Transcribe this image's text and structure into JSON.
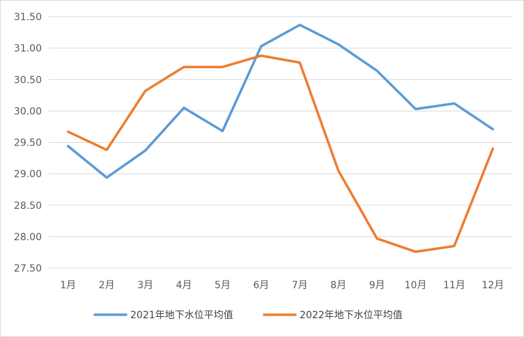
{
  "chart_data": {
    "type": "line",
    "title": "",
    "xlabel": "",
    "ylabel": "",
    "categories": [
      "1月",
      "2月",
      "3月",
      "4月",
      "5月",
      "6月",
      "7月",
      "8月",
      "9月",
      "10月",
      "11月",
      "12月"
    ],
    "ylim": [
      27.5,
      31.5
    ],
    "yticks": [
      "27.50",
      "28.00",
      "28.50",
      "29.00",
      "29.50",
      "30.00",
      "30.50",
      "31.00",
      "31.50"
    ],
    "grid": true,
    "legend_position": "bottom",
    "series": [
      {
        "name": "2021年地下水位平均值",
        "color": "#5b9bd5",
        "values": [
          29.44,
          28.94,
          29.37,
          30.05,
          29.68,
          31.03,
          31.37,
          31.06,
          30.64,
          30.03,
          30.12,
          29.71
        ]
      },
      {
        "name": "2022年地下水位平均值",
        "color": "#ed7d31",
        "values": [
          29.67,
          29.38,
          30.32,
          30.7,
          30.7,
          30.88,
          30.77,
          29.05,
          27.97,
          27.76,
          27.85,
          29.4
        ]
      }
    ]
  }
}
